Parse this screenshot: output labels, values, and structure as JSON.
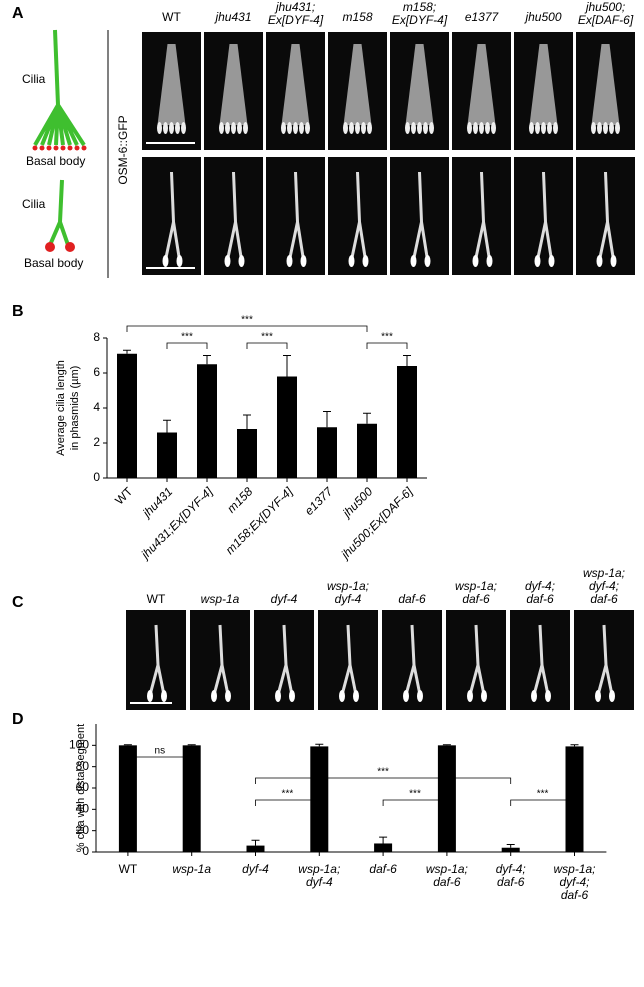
{
  "panels": {
    "a": {
      "label": "A",
      "columns": [
        [
          "WT"
        ],
        [
          "jhu431"
        ],
        [
          "jhu431;",
          "Ex[DYF-4]"
        ],
        [
          "m158"
        ],
        [
          "m158;",
          "Ex[DYF-4]"
        ],
        [
          "e1377"
        ],
        [
          "jhu500"
        ],
        [
          "jhu500;",
          "Ex[DAF-6]"
        ]
      ],
      "row_label": "OSM-6::GFP",
      "diagram_top": {
        "cilia": "Cilia",
        "basal": "Basal body"
      },
      "diagram_bottom": {
        "cilia": "Cilia",
        "basal": "Basal body"
      }
    },
    "b": {
      "label": "B"
    },
    "c": {
      "label": "C",
      "columns": [
        [
          "WT"
        ],
        [
          "wsp-1a"
        ],
        [
          "dyf-4"
        ],
        [
          "wsp-1a;",
          "dyf-4"
        ],
        [
          "daf-6"
        ],
        [
          "wsp-1a;",
          "daf-6"
        ],
        [
          "dyf-4;",
          "daf-6"
        ],
        [
          "wsp-1a;",
          "dyf-4;",
          "daf-6"
        ]
      ]
    },
    "d": {
      "label": "D"
    }
  },
  "chart_data": [
    {
      "type": "bar",
      "ylabel": [
        "Average cilia length",
        "in phasmids (µm)"
      ],
      "categories": [
        [
          "WT"
        ],
        [
          "jhu431"
        ],
        [
          "jhu431;Ex[DYF-4]"
        ],
        [
          "m158"
        ],
        [
          "m158;Ex[DYF-4]"
        ],
        [
          "e1377"
        ],
        [
          "jhu500"
        ],
        [
          "jhu500;Ex[DAF-6]"
        ]
      ],
      "values": [
        7.1,
        2.6,
        6.5,
        2.8,
        5.8,
        2.9,
        3.1,
        6.4
      ],
      "errors": [
        0.2,
        0.7,
        0.5,
        0.8,
        1.2,
        0.9,
        0.6,
        0.6
      ],
      "color": "#000000",
      "ylim": [
        0,
        8
      ],
      "yticks": [
        0,
        2,
        4,
        6,
        8
      ],
      "rotate_labels": true,
      "annotations": [
        "***",
        "***",
        "***",
        "***"
      ]
    },
    {
      "type": "bar",
      "ylabel": [
        "% cilia with distal segment"
      ],
      "categories": [
        [
          "WT"
        ],
        [
          "wsp-1a"
        ],
        [
          "dyf-4"
        ],
        [
          "wsp-1a;",
          "dyf-4"
        ],
        [
          "daf-6"
        ],
        [
          "wsp-1a;",
          "daf-6"
        ],
        [
          "dyf-4;",
          "daf-6"
        ],
        [
          "wsp-1a;",
          "dyf-4;",
          "daf-6"
        ]
      ],
      "values": [
        100,
        100,
        6,
        99,
        8,
        100,
        4,
        99
      ],
      "errors": [
        0.5,
        0.5,
        5,
        2,
        6,
        0.5,
        3,
        1.5
      ],
      "color": "#000000",
      "ylim": [
        0,
        120
      ],
      "yticks": [
        0,
        20,
        40,
        60,
        80,
        100
      ],
      "rotate_labels": false,
      "annotations": [
        "ns",
        "***",
        "***",
        "***",
        "***"
      ]
    }
  ]
}
